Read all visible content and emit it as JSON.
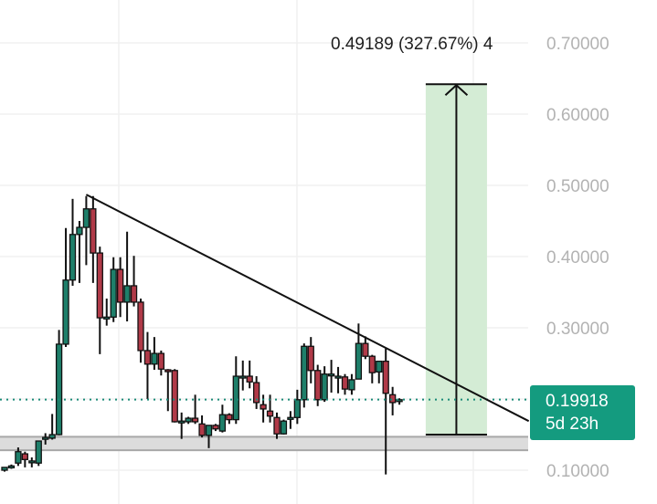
{
  "chart_data": {
    "type": "candlestick",
    "title": "",
    "xlabel": "",
    "ylabel": "",
    "ylim": [
      0.08,
      0.73
    ],
    "y_ticks": [
      "0.70000",
      "0.60000",
      "0.50000",
      "0.40000",
      "0.30000",
      "0.10000"
    ],
    "grid": true,
    "candles": [
      [
        0.1,
        0.104,
        0.098,
        0.104
      ],
      [
        0.104,
        0.108,
        0.102,
        0.106
      ],
      [
        0.11,
        0.132,
        0.106,
        0.126
      ],
      [
        0.123,
        0.126,
        0.104,
        0.115
      ],
      [
        0.112,
        0.118,
        0.104,
        0.113
      ],
      [
        0.11,
        0.141,
        0.106,
        0.141
      ],
      [
        0.146,
        0.152,
        0.136,
        0.146
      ],
      [
        0.145,
        0.179,
        0.143,
        0.15
      ],
      [
        0.15,
        0.297,
        0.149,
        0.277
      ],
      [
        0.277,
        0.44,
        0.273,
        0.367
      ],
      [
        0.367,
        0.481,
        0.359,
        0.431
      ],
      [
        0.431,
        0.45,
        0.363,
        0.441
      ],
      [
        0.441,
        0.485,
        0.388,
        0.467
      ],
      [
        0.467,
        0.485,
        0.363,
        0.405
      ],
      [
        0.405,
        0.414,
        0.263,
        0.314
      ],
      [
        0.315,
        0.341,
        0.303,
        0.315
      ],
      [
        0.315,
        0.399,
        0.308,
        0.382
      ],
      [
        0.382,
        0.399,
        0.315,
        0.336
      ],
      [
        0.336,
        0.435,
        0.309,
        0.359
      ],
      [
        0.359,
        0.401,
        0.33,
        0.336
      ],
      [
        0.336,
        0.341,
        0.251,
        0.268
      ],
      [
        0.268,
        0.294,
        0.2,
        0.249
      ],
      [
        0.249,
        0.287,
        0.241,
        0.264
      ],
      [
        0.264,
        0.268,
        0.233,
        0.242
      ],
      [
        0.241,
        0.242,
        0.183,
        0.24
      ],
      [
        0.24,
        0.242,
        0.167,
        0.168
      ],
      [
        0.169,
        0.181,
        0.144,
        0.169
      ],
      [
        0.168,
        0.175,
        0.165,
        0.173
      ],
      [
        0.173,
        0.206,
        0.165,
        0.168
      ],
      [
        0.165,
        0.177,
        0.146,
        0.149
      ],
      [
        0.149,
        0.163,
        0.131,
        0.163
      ],
      [
        0.163,
        0.165,
        0.155,
        0.158
      ],
      [
        0.155,
        0.192,
        0.153,
        0.178
      ],
      [
        0.178,
        0.18,
        0.165,
        0.171
      ],
      [
        0.171,
        0.26,
        0.165,
        0.232
      ],
      [
        0.232,
        0.254,
        0.212,
        0.232
      ],
      [
        0.232,
        0.254,
        0.215,
        0.224
      ],
      [
        0.223,
        0.232,
        0.186,
        0.195
      ],
      [
        0.192,
        0.206,
        0.167,
        0.186
      ],
      [
        0.183,
        0.206,
        0.167,
        0.176
      ],
      [
        0.174,
        0.181,
        0.144,
        0.151
      ],
      [
        0.151,
        0.171,
        0.15,
        0.169
      ],
      [
        0.174,
        0.183,
        0.158,
        0.174
      ],
      [
        0.174,
        0.213,
        0.165,
        0.199
      ],
      [
        0.199,
        0.278,
        0.188,
        0.274
      ],
      [
        0.274,
        0.287,
        0.222,
        0.24
      ],
      [
        0.24,
        0.248,
        0.19,
        0.199
      ],
      [
        0.199,
        0.246,
        0.196,
        0.235
      ],
      [
        0.235,
        0.255,
        0.209,
        0.235
      ],
      [
        0.232,
        0.245,
        0.208,
        0.232
      ],
      [
        0.231,
        0.235,
        0.206,
        0.214
      ],
      [
        0.213,
        0.235,
        0.206,
        0.227
      ],
      [
        0.228,
        0.306,
        0.228,
        0.278
      ],
      [
        0.278,
        0.288,
        0.256,
        0.26
      ],
      [
        0.26,
        0.262,
        0.222,
        0.237
      ],
      [
        0.238,
        0.253,
        0.222,
        0.253
      ],
      [
        0.253,
        0.271,
        0.094,
        0.208
      ],
      [
        0.206,
        0.217,
        0.177,
        0.195
      ],
      [
        0.197,
        0.201,
        0.192,
        0.199
      ]
    ],
    "candle_format": "open,high,low,close",
    "trendline": {
      "from": {
        "bar": 12,
        "price": 0.487
      },
      "to": {
        "bar": 77,
        "price": 0.169
      }
    },
    "support_zone": {
      "low": 0.128,
      "high": 0.147,
      "color": "#dcdcdc"
    },
    "long_position": {
      "from_bar": 62,
      "to_bar": 71,
      "entry": 0.15,
      "target": 0.642,
      "color": "#d4ecd5"
    },
    "measure_label": "0.49189 (327.67%) 4",
    "last_price": {
      "value": "0.19918",
      "countdown": "5d 23h",
      "color": "#149b7f"
    },
    "colors": {
      "up": "#1e7f6a",
      "down": "#b03a48",
      "outline": "#111111"
    }
  }
}
